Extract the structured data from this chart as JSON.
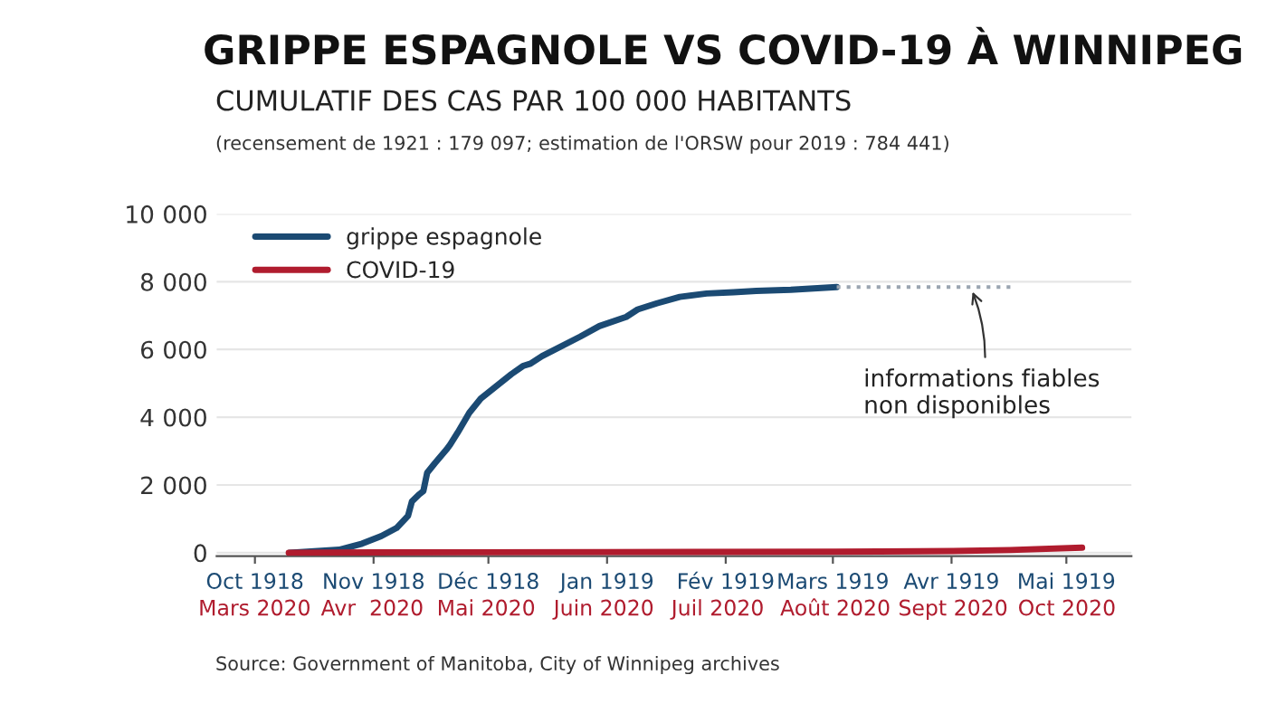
{
  "chart_data": {
    "type": "line",
    "title": "GRIPPE ESPAGNOLE VS COVID-19 À WINNIPEG",
    "subtitle": "CUMULATIF DES CAS PAR 100 000 HABITANTS",
    "annotations": [
      "(recensement de 1921 : 179 097; estimation de l'ORSW pour 2019 : 784 441)",
      {
        "text": "informations fiables\nnon disponibles",
        "x": "1919-04-06",
        "y": 7840
      },
      "Source: Government of Manitoba, City of Winnipeg archives"
    ],
    "series": [
      {
        "name": "grippe espagnole",
        "color": "#1b4a73",
        "x": [
          "1918-10-10",
          "1918-10-23",
          "1918-10-29",
          "1918-11-03",
          "1918-11-07",
          "1918-11-10",
          "1918-11-11",
          "1918-11-13",
          "1918-11-14",
          "1918-11-15",
          "1918-11-17",
          "1918-11-20",
          "1918-11-21",
          "1918-11-23",
          "1918-11-26",
          "1918-11-29",
          "1918-12-03",
          "1918-12-07",
          "1918-12-10",
          "1918-12-12",
          "1918-12-15",
          "1918-12-25",
          "1918-12-30",
          "1919-01-06",
          "1919-01-09",
          "1919-01-14",
          "1919-01-20",
          "1919-01-27",
          "1919-02-03",
          "1919-02-09",
          "1919-02-18",
          "1919-03-02"
        ],
        "values": [
          0,
          90,
          270,
          490,
          730,
          1090,
          1510,
          1730,
          1820,
          2360,
          2640,
          3040,
          3190,
          3550,
          4130,
          4550,
          4910,
          5270,
          5510,
          5580,
          5800,
          6380,
          6690,
          6960,
          7180,
          7360,
          7550,
          7650,
          7690,
          7730,
          7760,
          7840
        ]
      },
      {
        "name": "COVID-19",
        "color": "#b01c2e",
        "axis": "x2",
        "x": [
          "2020-03-10",
          "2020-04-01",
          "2020-06-01",
          "2020-08-01",
          "2020-09-01",
          "2020-09-16",
          "2020-10-05"
        ],
        "values": [
          0,
          10,
          20,
          30,
          50,
          80,
          150
        ]
      },
      {
        "color": "#9aa5b1",
        "line_style": "dotted",
        "x": [
          "1919-03-02",
          "1919-04-17"
        ],
        "values": [
          7840,
          7840
        ]
      }
    ],
    "xlim": [
      "1918-09-21",
      "1919-05-18"
    ],
    "ylim": [
      -100,
      10000
    ],
    "xticks": [
      {
        "value": "1918-10-01",
        "label": "Oct 1918"
      },
      {
        "value": "1918-11-01",
        "label": "Nov 1918"
      },
      {
        "value": "1918-12-01",
        "label": "Déc 1918"
      },
      {
        "value": "1919-01-01",
        "label": "Jan 1919"
      },
      {
        "value": "1919-02-01",
        "label": "Fév 1919"
      },
      {
        "value": "1919-03-01",
        "label": "Mars 1919"
      },
      {
        "value": "1919-04-01",
        "label": "Avr 1919"
      },
      {
        "value": "1919-05-01",
        "label": "Mai 1919"
      }
    ],
    "x2lim": [
      "2020-02-20",
      "2020-10-18"
    ],
    "x2ticks": [
      {
        "value": "2020-03-01",
        "label": "Mars 2020"
      },
      {
        "value": "2020-04-01",
        "label": "Avr  2020"
      },
      {
        "value": "2020-05-01",
        "label": "Mai 2020"
      },
      {
        "value": "2020-06-01",
        "label": "Juin 2020"
      },
      {
        "value": "2020-07-01",
        "label": "Juil 2020"
      },
      {
        "value": "2020-08-01",
        "label": "Août 2020"
      },
      {
        "value": "2020-09-01",
        "label": "Sept 2020"
      },
      {
        "value": "2020-10-01",
        "label": "Oct 2020"
      }
    ],
    "yticks": [
      {
        "value": 0,
        "label": "0"
      },
      {
        "value": 2000,
        "label": "2 000"
      },
      {
        "value": 4000,
        "label": "4 000"
      },
      {
        "value": 6000,
        "label": "6 000"
      },
      {
        "value": 8000,
        "label": "8 000"
      },
      {
        "value": 10000,
        "label": "10 000"
      }
    ],
    "grid": "y",
    "legend": "top left",
    "marker": "none",
    "line_style": "solid"
  }
}
